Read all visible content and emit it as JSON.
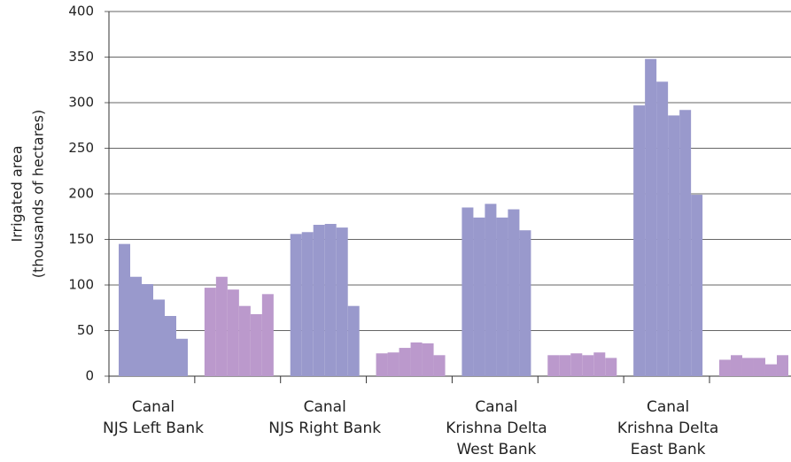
{
  "chart_data": {
    "type": "grouped-bar",
    "ylabel": [
      "Irrigated area",
      "(thousands of hectares)"
    ],
    "categories": [
      [
        "Canal",
        "NJS Left Bank"
      ],
      null,
      [
        "Canal",
        "NJS Right Bank"
      ],
      null,
      [
        "Canal",
        "Krishna Delta",
        "West Bank"
      ],
      null,
      [
        "Canal",
        "Krishna Delta",
        "East Bank"
      ],
      null
    ],
    "colors": [
      "#9999cc",
      "#bb99cc",
      "#9999cc",
      "#bb99cc",
      "#9999cc",
      "#bb99cc",
      "#9999cc",
      "#bb99cc"
    ],
    "values": [
      [
        145,
        109,
        101,
        84,
        66,
        41
      ],
      [
        97,
        109,
        95,
        77,
        68,
        90
      ],
      [
        156,
        158,
        166,
        167,
        163,
        77
      ],
      [
        25,
        26,
        31,
        37,
        36,
        23
      ],
      [
        185,
        174,
        189,
        174,
        183,
        160
      ],
      [
        23,
        23,
        25,
        23,
        26,
        20
      ],
      [
        297,
        348,
        323,
        286,
        292,
        199
      ],
      [
        18,
        23,
        20,
        20,
        13,
        23
      ]
    ],
    "ylim": [
      0,
      400
    ],
    "yticks": [
      0,
      50,
      100,
      150,
      200,
      250,
      300,
      350,
      400
    ],
    "grid": true
  }
}
